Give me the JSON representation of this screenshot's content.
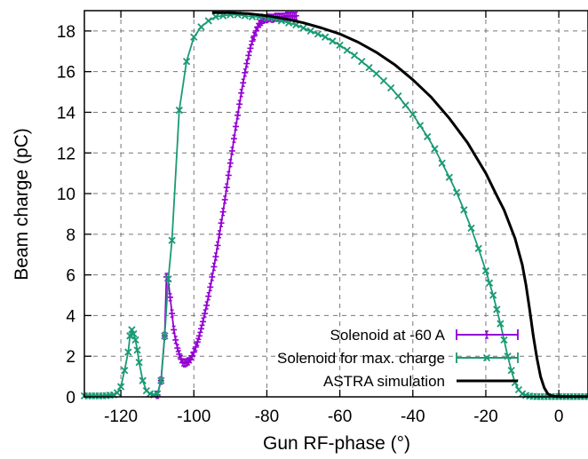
{
  "chart_data": {
    "type": "line",
    "xlabel": "Gun RF-phase (°)",
    "ylabel": "Beam charge (pC)",
    "xlim": [
      -130,
      8
    ],
    "ylim": [
      0,
      19
    ],
    "xticks": [
      -120,
      -100,
      -80,
      -60,
      -40,
      -20,
      0
    ],
    "yticks": [
      0,
      2,
      4,
      6,
      8,
      10,
      12,
      14,
      16,
      18
    ],
    "grid": true,
    "legend_position": "bottom-right",
    "series": [
      {
        "name": "Solenoid at -60 A",
        "color": "#9400d3",
        "marker": "plus-errorbar",
        "x": [
          -110,
          -109,
          -108,
          -107.5,
          -107,
          -106.5,
          -106,
          -105.5,
          -105,
          -104.5,
          -104,
          -103.5,
          -103,
          -102.5,
          -102,
          -101.5,
          -101,
          -100.5,
          -100,
          -99.5,
          -99,
          -98.5,
          -98,
          -97.5,
          -97,
          -96.5,
          -96,
          -95.5,
          -95,
          -94.5,
          -94,
          -93.5,
          -93,
          -92.5,
          -92,
          -91.5,
          -91,
          -90.5,
          -90,
          -89.5,
          -89,
          -88.5,
          -88,
          -87.5,
          -87,
          -86.5,
          -86,
          -85.5,
          -85,
          -84.5,
          -84,
          -83.5,
          -83,
          -82.5,
          -82,
          -81.5,
          -81,
          -80.5,
          -80,
          -79.5,
          -79,
          -78.5,
          -78,
          -77.5,
          -77,
          -76.5,
          -76,
          -75.5,
          -75,
          -74.5,
          -74,
          -73.5,
          -73,
          -72.5,
          -72
        ],
        "y": [
          0.1,
          0.8,
          3.0,
          5.9,
          5.7,
          4.9,
          4.1,
          3.3,
          2.8,
          2.4,
          2.1,
          1.85,
          1.7,
          1.65,
          1.7,
          1.75,
          1.85,
          2.0,
          2.2,
          2.45,
          2.7,
          3.0,
          3.35,
          3.7,
          4.1,
          4.5,
          4.95,
          5.4,
          5.9,
          6.4,
          6.9,
          7.45,
          8.0,
          8.55,
          9.1,
          9.7,
          10.3,
          10.9,
          11.5,
          12.1,
          12.7,
          13.3,
          13.85,
          14.4,
          14.95,
          15.45,
          15.95,
          16.4,
          16.8,
          17.15,
          17.5,
          17.75,
          18.0,
          18.2,
          18.35,
          18.45,
          18.55,
          18.6,
          18.6,
          18.65,
          18.65,
          18.6,
          18.65,
          18.7,
          18.65,
          18.7,
          18.65,
          18.7,
          18.7,
          18.75,
          18.7,
          18.75,
          18.75,
          18.7,
          18.75
        ]
      },
      {
        "name": "Solenoid for max. charge",
        "color": "#1a9a75",
        "marker": "x-errorbar",
        "x": [
          -130,
          -129,
          -128,
          -127,
          -126,
          -125,
          -124,
          -123,
          -122,
          -121,
          -120,
          -119,
          -118,
          -117.5,
          -117,
          -116.5,
          -116,
          -115.5,
          -115,
          -114,
          -113,
          -112,
          -111,
          -110,
          -109,
          -108,
          -107,
          -106,
          -104,
          -102,
          -100,
          -98,
          -96,
          -94,
          -92,
          -90,
          -88,
          -86,
          -84,
          -82,
          -80,
          -78,
          -76,
          -74,
          -72,
          -70,
          -68,
          -66,
          -64,
          -62,
          -60,
          -58,
          -56,
          -54,
          -52,
          -50,
          -48,
          -46,
          -44,
          -42,
          -40,
          -38,
          -36,
          -34,
          -32,
          -30,
          -28,
          -26,
          -24,
          -22,
          -20,
          -19,
          -18,
          -17,
          -16,
          -15,
          -14,
          -13,
          -12,
          -11,
          -10,
          -9,
          -8,
          -7,
          -6,
          -5,
          -4,
          -3,
          -2,
          -1,
          0,
          1,
          2,
          3,
          4,
          5,
          6,
          7,
          8
        ],
        "y": [
          0.05,
          0.05,
          0.05,
          0.05,
          0.05,
          0.05,
          0.06,
          0.08,
          0.1,
          0.2,
          0.5,
          1.3,
          2.2,
          3.0,
          3.3,
          3.1,
          2.8,
          2.3,
          1.7,
          0.8,
          0.3,
          0.15,
          0.1,
          0.15,
          0.8,
          3.0,
          5.8,
          7.7,
          14.1,
          16.5,
          17.7,
          18.2,
          18.5,
          18.7,
          18.75,
          18.8,
          18.8,
          18.75,
          18.7,
          18.7,
          18.65,
          18.6,
          18.5,
          18.4,
          18.3,
          18.15,
          18.0,
          17.85,
          17.7,
          17.5,
          17.3,
          17.05,
          16.8,
          16.5,
          16.2,
          15.9,
          15.55,
          15.2,
          14.8,
          14.35,
          13.9,
          13.35,
          12.8,
          12.2,
          11.5,
          10.8,
          10.05,
          9.2,
          8.3,
          7.3,
          6.2,
          5.6,
          5.0,
          4.3,
          3.6,
          2.8,
          2.0,
          1.3,
          0.7,
          0.35,
          0.15,
          0.07,
          0.04,
          0.02,
          0.01,
          0.01,
          0.01,
          0.01,
          0.01,
          0.01,
          0.01,
          0.01,
          0.01,
          0.01,
          0.01,
          0.01,
          0.01,
          0.01,
          0.01
        ]
      },
      {
        "name": "ASTRA simulation",
        "color": "#000000",
        "marker": "none",
        "x": [
          -95,
          -90,
          -85,
          -80,
          -75,
          -70,
          -65,
          -60,
          -55,
          -50,
          -45,
          -40,
          -35,
          -30,
          -25,
          -20,
          -17,
          -15,
          -12,
          -10,
          -9,
          -8,
          -7,
          -6,
          -5,
          -4,
          -3,
          -2,
          -1,
          0,
          1,
          2,
          3,
          4,
          5,
          6,
          7,
          8
        ],
        "y": [
          18.9,
          18.9,
          18.85,
          18.75,
          18.6,
          18.4,
          18.15,
          17.85,
          17.45,
          16.95,
          16.35,
          15.6,
          14.75,
          13.7,
          12.5,
          11.0,
          9.9,
          9.2,
          7.8,
          6.5,
          5.5,
          4.3,
          3.0,
          1.9,
          1.0,
          0.45,
          0.15,
          0.05,
          0.02,
          0.01,
          0.01,
          0.01,
          0.01,
          0.01,
          0.01,
          0.01,
          0.01,
          0.01
        ]
      }
    ]
  }
}
